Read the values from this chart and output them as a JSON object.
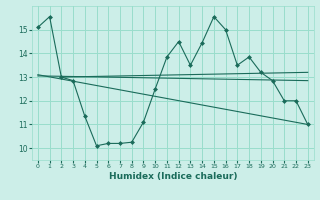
{
  "xlabel": "Humidex (Indice chaleur)",
  "bg_color": "#cceee8",
  "grid_color": "#99ddcc",
  "line_color": "#1a6b5a",
  "xlim": [
    -0.5,
    23.5
  ],
  "ylim": [
    9.5,
    16.0
  ],
  "yticks": [
    10,
    11,
    12,
    13,
    14,
    15
  ],
  "xticks": [
    0,
    1,
    2,
    3,
    4,
    5,
    6,
    7,
    8,
    9,
    10,
    11,
    12,
    13,
    14,
    15,
    16,
    17,
    18,
    19,
    20,
    21,
    22,
    23
  ],
  "series1_x": [
    0,
    1,
    2,
    3,
    4,
    5,
    6,
    7,
    8,
    9,
    10,
    11,
    12,
    13,
    14,
    15,
    16,
    17,
    18,
    19,
    20,
    21,
    22,
    23
  ],
  "series1_y": [
    15.1,
    15.55,
    13.0,
    12.85,
    11.35,
    10.1,
    10.2,
    10.2,
    10.25,
    11.1,
    12.5,
    13.85,
    14.5,
    13.5,
    14.45,
    15.55,
    15.0,
    13.5,
    13.85,
    13.2,
    12.85,
    12.0,
    12.0,
    11.0
  ],
  "series2_x": [
    2,
    23
  ],
  "series2_y": [
    13.0,
    13.2
  ],
  "series3_x": [
    0,
    23
  ],
  "series3_y": [
    13.05,
    12.85
  ],
  "series4_x": [
    0,
    23
  ],
  "series4_y": [
    13.1,
    11.0
  ]
}
